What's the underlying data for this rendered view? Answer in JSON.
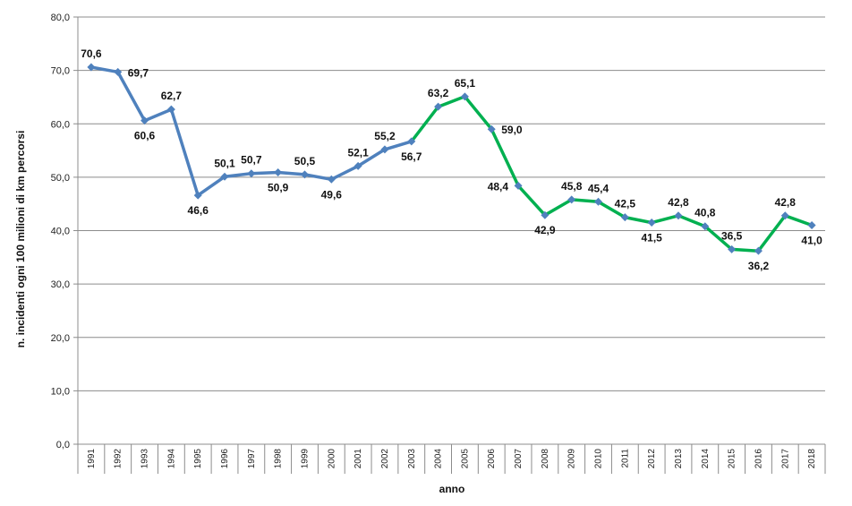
{
  "chart_data": {
    "type": "line",
    "xlabel": "anno",
    "ylabel": "n. incidenti  ogni 100 milioni di km  percorsi",
    "ylim": [
      0,
      80
    ],
    "yticks": [
      "0,0",
      "10,0",
      "20,0",
      "30,0",
      "40,0",
      "50,0",
      "60,0",
      "70,0",
      "80,0"
    ],
    "grid": true,
    "colors": {
      "first": "#4F81BD",
      "second": "#00B050",
      "marker": "#4F81BD"
    },
    "x": [
      "1991",
      "1992",
      "1993",
      "1994",
      "1995",
      "1996",
      "1997",
      "1998",
      "1999",
      "2000",
      "2001",
      "2002",
      "2003",
      "2004",
      "2005",
      "2006",
      "2007",
      "2008",
      "2009",
      "2010",
      "2011",
      "2012",
      "2013",
      "2014",
      "2015",
      "2016",
      "2017",
      "2018"
    ],
    "values": [
      70.6,
      69.7,
      60.6,
      62.7,
      46.6,
      50.1,
      50.7,
      50.9,
      50.5,
      49.6,
      52.1,
      55.2,
      56.7,
      63.2,
      65.1,
      59.0,
      48.4,
      42.9,
      45.8,
      45.4,
      42.5,
      41.5,
      42.8,
      40.8,
      36.5,
      36.2,
      42.8,
      41.0
    ],
    "labels": [
      "70,6",
      "69,7",
      "60,6",
      "62,7",
      "46,6",
      "50,1",
      "50,7",
      "50,9",
      "50,5",
      "49,6",
      "52,1",
      "55,2",
      "56,7",
      "63,2",
      "65,1",
      "59,0",
      "48,4",
      "42,9",
      "45,8",
      "45,4",
      "42,5",
      "41,5",
      "42,8",
      "40,8",
      "36,5",
      "36,2",
      "42,8",
      "41,0"
    ],
    "label_pos": [
      "above",
      "right",
      "below",
      "above",
      "below",
      "above",
      "above",
      "below",
      "above",
      "below",
      "above",
      "above",
      "below",
      "above",
      "above",
      "right",
      "left",
      "below",
      "above",
      "above",
      "above",
      "below",
      "above",
      "above",
      "above",
      "below",
      "above",
      "below"
    ],
    "color_switch_index": 12
  }
}
